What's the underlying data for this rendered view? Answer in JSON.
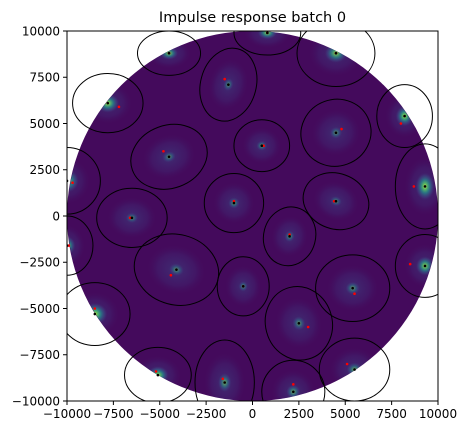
{
  "chart_data": {
    "type": "heatmap",
    "title": "Impulse response batch 0",
    "xlabel": "",
    "ylabel": "",
    "xlim": [
      -10000,
      10000
    ],
    "ylim": [
      -10000,
      10000
    ],
    "xticks": [
      -10000,
      -7500,
      -5000,
      -2500,
      0,
      2500,
      5000,
      7500,
      10000
    ],
    "yticks": [
      10000,
      7500,
      5000,
      2500,
      0,
      -2500,
      -5000,
      -7500,
      -10000
    ],
    "grid": false,
    "legend": "none",
    "colormap": [
      "#440154",
      "#3b528b",
      "#21918c",
      "#5ec962",
      "#fde725"
    ],
    "background_color": "#440a5c",
    "disk": {
      "cx": 0,
      "cy": 0,
      "r": 10000
    },
    "ellipse_color": "#000000",
    "marker_colors": {
      "true": "#000000",
      "estimated": "#ff0000"
    },
    "sources": [
      {
        "x": 800,
        "y": 9900,
        "ex": 800,
        "ey": 9900,
        "rx": 1800,
        "ry": 1200,
        "angle": 0,
        "glow": 0.5
      },
      {
        "x": -4500,
        "y": 8800,
        "ex": -4500,
        "ey": 8800,
        "rx": 1700,
        "ry": 1200,
        "angle": 0,
        "glow": 0.5
      },
      {
        "x": 4500,
        "y": 8800,
        "ex": 4500,
        "ey": 8800,
        "rx": 2100,
        "ry": 1800,
        "angle": 0,
        "glow": 0.5
      },
      {
        "x": -1300,
        "y": 7100,
        "ex": -1500,
        "ey": 7400,
        "rx": 1500,
        "ry": 2000,
        "angle": -15,
        "glow": 0.15
      },
      {
        "x": -7800,
        "y": 6100,
        "ex": -7200,
        "ey": 5900,
        "rx": 1900,
        "ry": 1600,
        "angle": 0,
        "glow": 0.6
      },
      {
        "x": 8200,
        "y": 5400,
        "ex": 8000,
        "ey": 5000,
        "rx": 1500,
        "ry": 1700,
        "angle": 0,
        "glow": 0.6
      },
      {
        "x": 4500,
        "y": 4500,
        "ex": 4800,
        "ey": 4700,
        "rx": 1900,
        "ry": 1800,
        "angle": 20,
        "glow": 0.15
      },
      {
        "x": -4500,
        "y": 3200,
        "ex": -4800,
        "ey": 3500,
        "rx": 2100,
        "ry": 1700,
        "angle": 20,
        "glow": 0.15
      },
      {
        "x": 500,
        "y": 3800,
        "ex": 600,
        "ey": 3800,
        "rx": 1500,
        "ry": 1400,
        "angle": 0,
        "glow": 0.2
      },
      {
        "x": -10000,
        "y": 1900,
        "ex": -9700,
        "ey": 1800,
        "rx": 1800,
        "ry": 1800,
        "angle": 0,
        "glow": 0.7
      },
      {
        "x": 9300,
        "y": 1600,
        "ex": 8700,
        "ey": 1600,
        "rx": 1600,
        "ry": 2300,
        "angle": 0,
        "glow": 0.6
      },
      {
        "x": -1000,
        "y": 700,
        "ex": -1000,
        "ey": 800,
        "rx": 1600,
        "ry": 1600,
        "angle": 0,
        "glow": 0.2
      },
      {
        "x": 4500,
        "y": 800,
        "ex": 4400,
        "ey": 800,
        "rx": 1800,
        "ry": 1500,
        "angle": -20,
        "glow": 0.15
      },
      {
        "x": -6500,
        "y": -100,
        "ex": -6600,
        "ey": -100,
        "rx": 1900,
        "ry": 1600,
        "angle": 0,
        "glow": 0.15
      },
      {
        "x": 2000,
        "y": -1100,
        "ex": 2000,
        "ey": -1000,
        "rx": 1400,
        "ry": 1600,
        "angle": -15,
        "glow": 0.2
      },
      {
        "x": -10000,
        "y": -1600,
        "ex": -9900,
        "ey": -1600,
        "rx": 1400,
        "ry": 1600,
        "angle": 0,
        "glow": 0.6
      },
      {
        "x": 9300,
        "y": -2700,
        "ex": 8500,
        "ey": -2600,
        "rx": 1600,
        "ry": 1700,
        "angle": 0,
        "glow": 0.55
      },
      {
        "x": -4100,
        "y": -2900,
        "ex": -4400,
        "ey": -3200,
        "rx": 2300,
        "ry": 1900,
        "angle": -15,
        "glow": 0.15
      },
      {
        "x": -500,
        "y": -3800,
        "ex": -500,
        "ey": -3800,
        "rx": 1400,
        "ry": 1600,
        "angle": 0,
        "glow": 0.15
      },
      {
        "x": 5400,
        "y": -3900,
        "ex": 5500,
        "ey": -4200,
        "rx": 2000,
        "ry": 1800,
        "angle": 0,
        "glow": 0.2
      },
      {
        "x": -8500,
        "y": -5300,
        "ex": -8500,
        "ey": -5000,
        "rx": 1900,
        "ry": 1700,
        "angle": 0,
        "glow": 0.7
      },
      {
        "x": 2500,
        "y": -5800,
        "ex": 3000,
        "ey": -6000,
        "rx": 1800,
        "ry": 2000,
        "angle": 15,
        "glow": 0.2
      },
      {
        "x": -5100,
        "y": -8600,
        "ex": -5200,
        "ey": -8400,
        "rx": 1800,
        "ry": 1500,
        "angle": 0,
        "glow": 0.6
      },
      {
        "x": 5500,
        "y": -8300,
        "ex": 5100,
        "ey": -8000,
        "rx": 1900,
        "ry": 1700,
        "angle": 0,
        "glow": 0.3
      },
      {
        "x": -1500,
        "y": -9000,
        "ex": -1600,
        "ey": -8800,
        "rx": 1600,
        "ry": 2300,
        "angle": 0,
        "glow": 0.3
      },
      {
        "x": 2200,
        "y": -9500,
        "ex": 2200,
        "ey": -9100,
        "rx": 1700,
        "ry": 1700,
        "angle": 0,
        "glow": 0.3
      }
    ]
  }
}
